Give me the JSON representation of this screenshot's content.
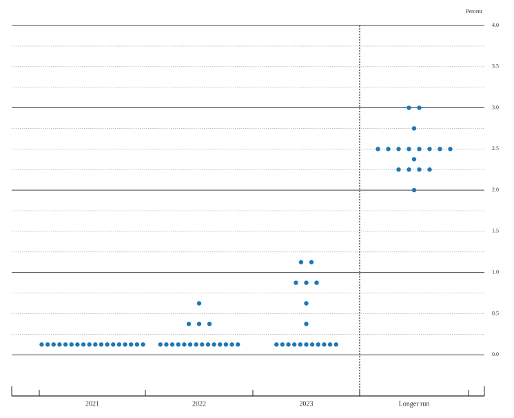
{
  "chart_data": {
    "type": "dot",
    "y_axis_label": "Percent",
    "categories": [
      "2021",
      "2022",
      "2023",
      "Longer run"
    ],
    "dots": [
      [
        {
          "value": 0.125,
          "count": 18
        }
      ],
      [
        {
          "value": 0.125,
          "count": 14
        },
        {
          "value": 0.375,
          "count": 3
        },
        {
          "value": 0.625,
          "count": 1
        }
      ],
      [
        {
          "value": 0.125,
          "count": 11
        },
        {
          "value": 0.375,
          "count": 1
        },
        {
          "value": 0.625,
          "count": 1
        },
        {
          "value": 0.875,
          "count": 3
        },
        {
          "value": 1.125,
          "count": 2
        }
      ],
      [
        {
          "value": 2.0,
          "count": 1
        },
        {
          "value": 2.25,
          "count": 4
        },
        {
          "value": 2.375,
          "count": 1
        },
        {
          "value": 2.5,
          "count": 8
        },
        {
          "value": 2.75,
          "count": 1
        },
        {
          "value": 3.0,
          "count": 2
        }
      ]
    ],
    "color": "#1f77b4",
    "ylim": [
      -0.5,
      4.0
    ],
    "yticks": [
      {
        "value": 0,
        "label": "0.0"
      },
      0.5,
      {
        "value": 1,
        "label": "1.0"
      },
      1.5,
      {
        "value": 2,
        "label": "2.0"
      },
      2.5,
      {
        "value": 3,
        "label": "3.0"
      },
      3.5,
      {
        "value": 4,
        "label": "4.0"
      }
    ],
    "minor_yticks": [
      0.25,
      0.75,
      1.25,
      1.75,
      2.25,
      2.75,
      3.25,
      3.75
    ],
    "grid": true
  }
}
